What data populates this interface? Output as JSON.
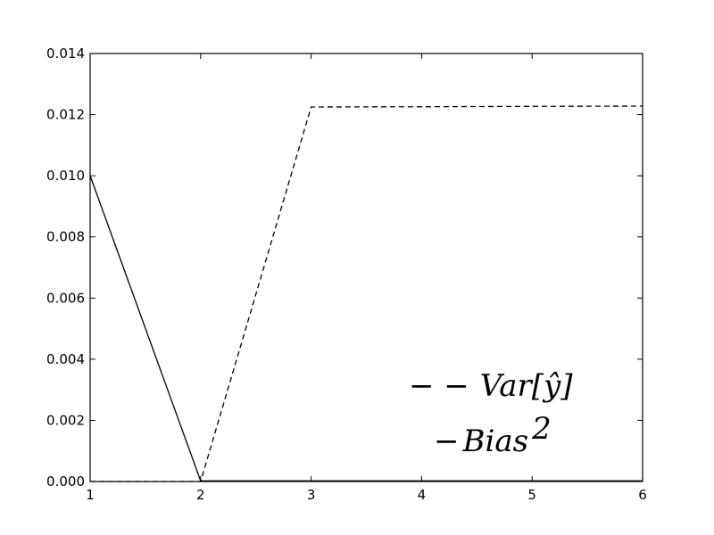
{
  "chart_data": {
    "type": "line",
    "title": "",
    "xlabel": "",
    "ylabel": "",
    "xlim": [
      1,
      6
    ],
    "ylim": [
      0,
      0.014
    ],
    "x_ticks": [
      "1",
      "2",
      "3",
      "4",
      "5",
      "6"
    ],
    "y_ticks": [
      "0.000",
      "0.002",
      "0.004",
      "0.006",
      "0.008",
      "0.010",
      "0.012",
      "0.014"
    ],
    "grid": false,
    "legend_position": "lower-right",
    "series": [
      {
        "name": "Var[ŷ]",
        "style": "dashed",
        "color": "#000000",
        "x": [
          1,
          2,
          3,
          4,
          5,
          6
        ],
        "y": [
          0.0,
          0.0,
          0.01225,
          0.01226,
          0.01227,
          0.01228
        ]
      },
      {
        "name": "Bias²",
        "style": "solid",
        "color": "#000000",
        "x": [
          1,
          2,
          3,
          4,
          5,
          6
        ],
        "y": [
          0.01,
          2e-05,
          2e-05,
          2e-05,
          2e-05,
          2e-05
        ]
      }
    ],
    "legend": {
      "var_prefix": "− −",
      "var_label": "Var[ŷ]",
      "bias_prefix": "−",
      "bias_label": "Bias",
      "bias_sup": "2"
    }
  }
}
